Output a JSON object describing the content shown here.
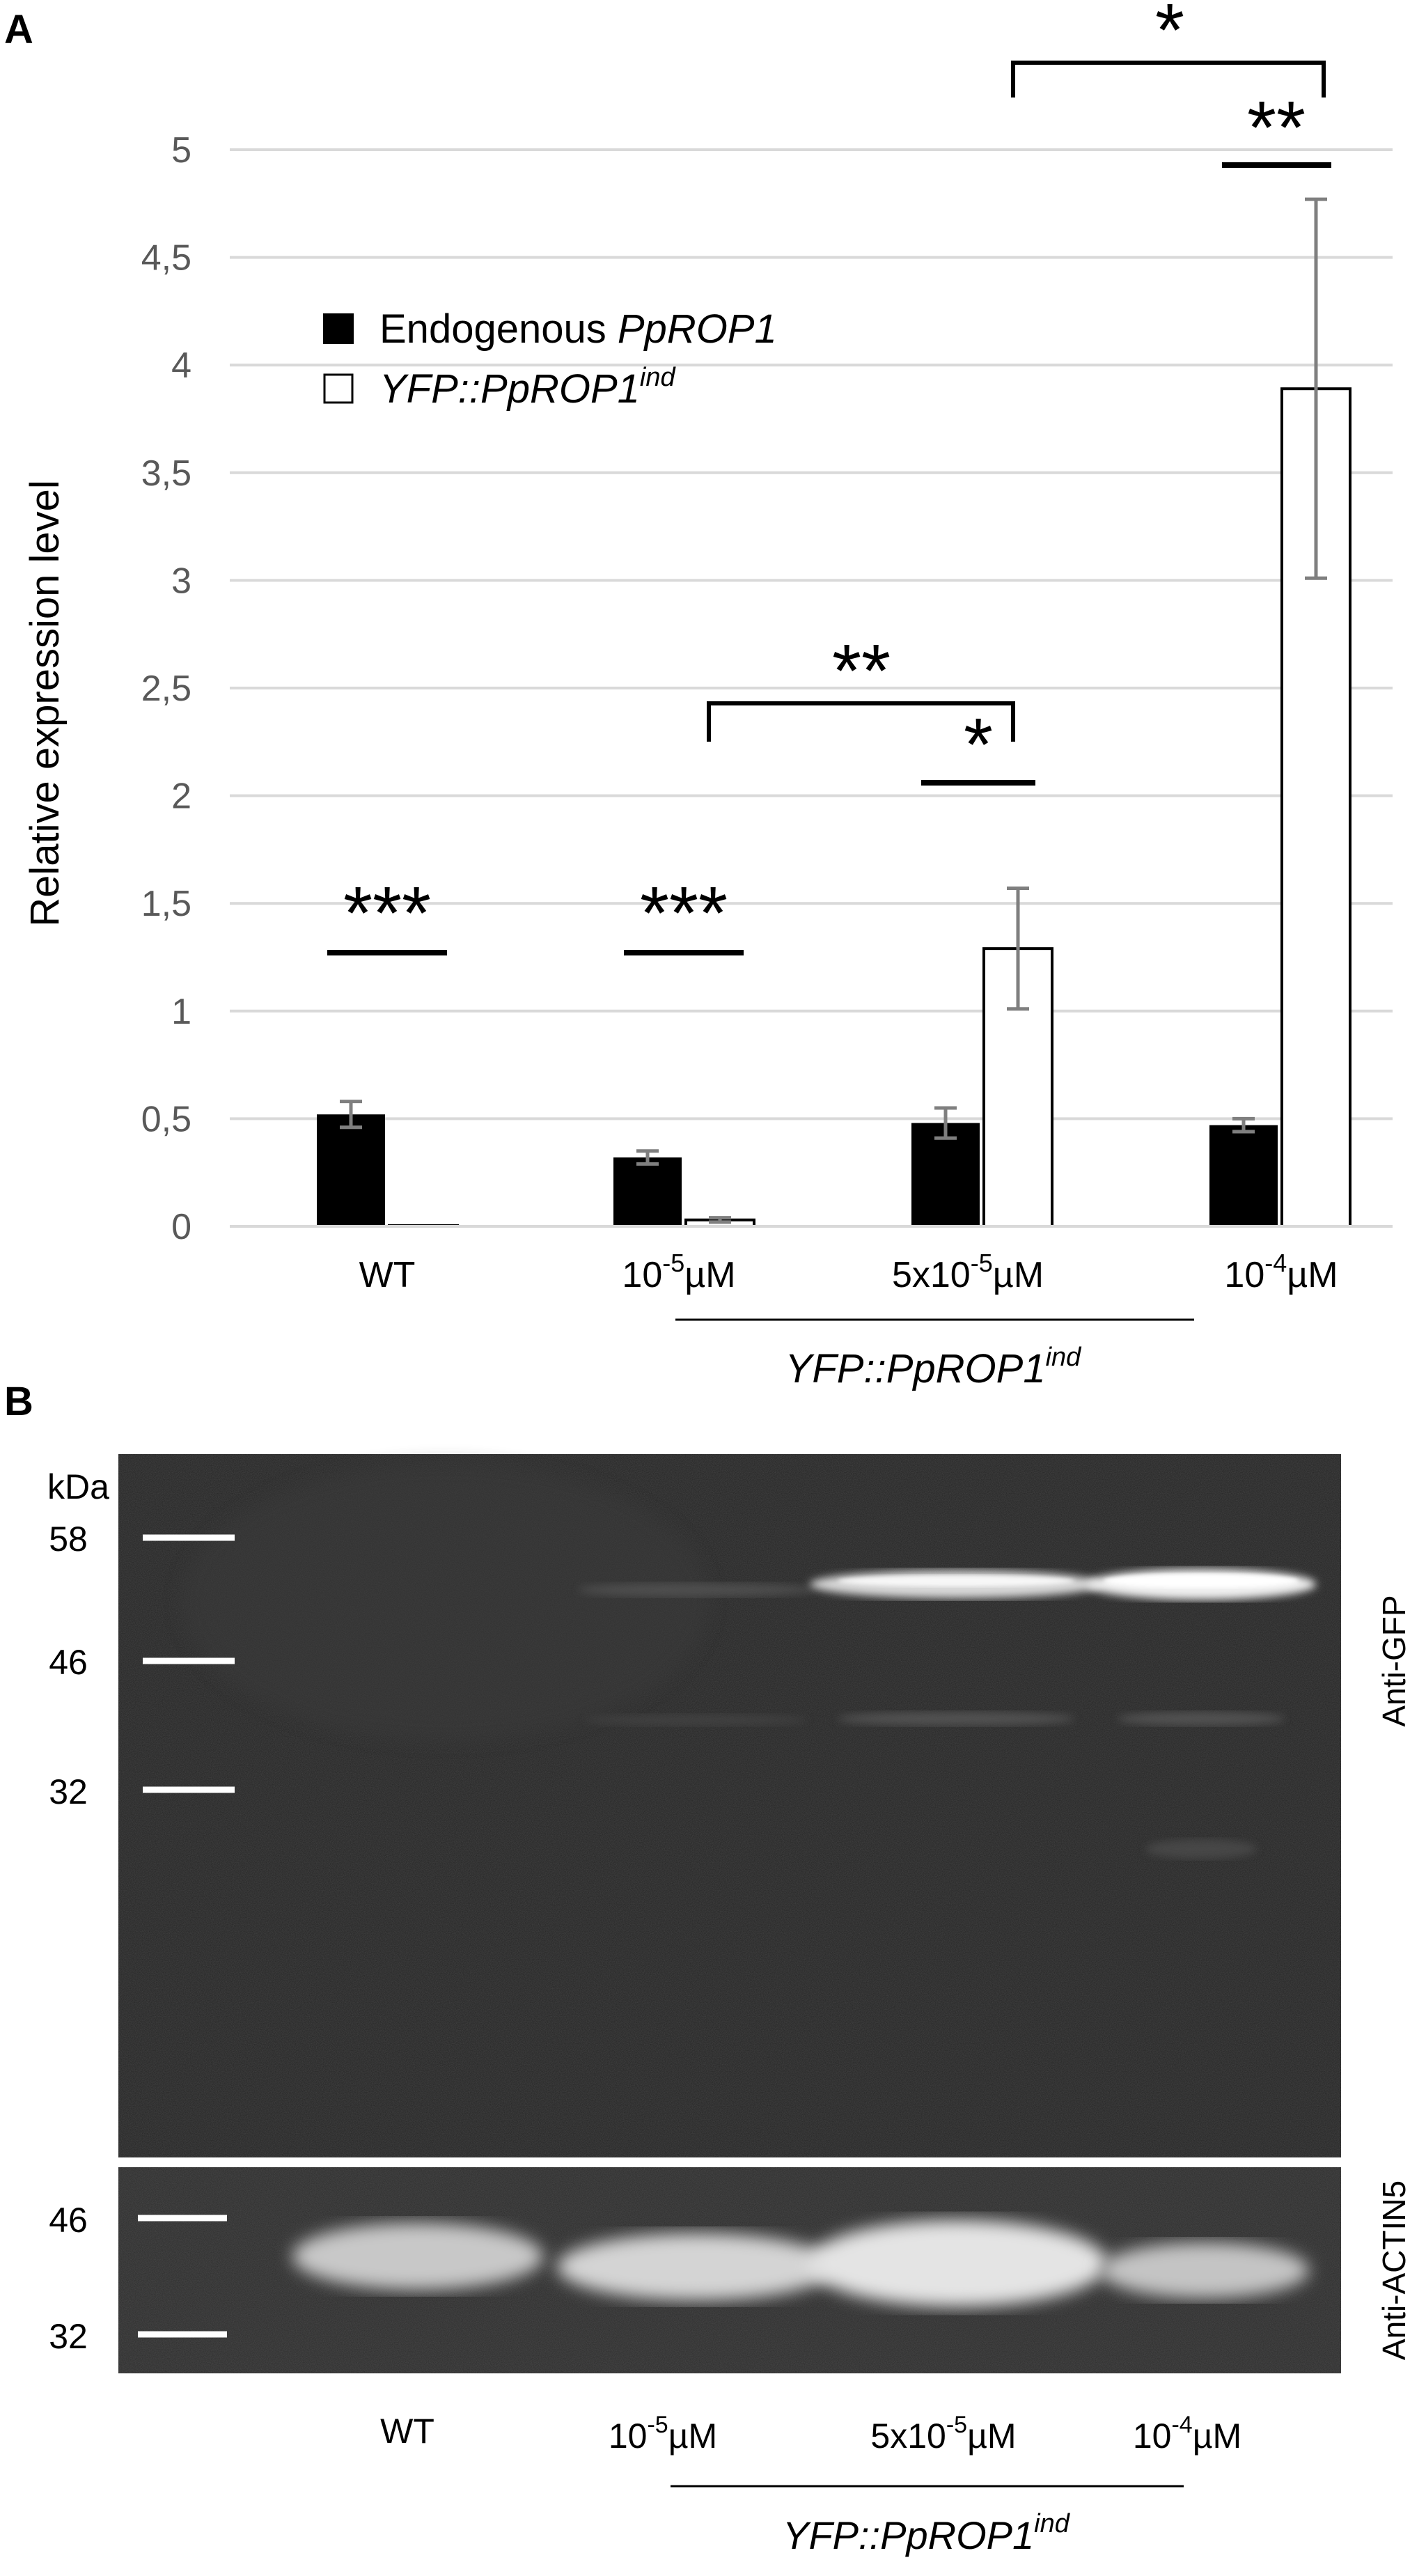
{
  "panel_a": {
    "letter": "A",
    "chart_data": {
      "type": "bar",
      "ylabel": "Relative expression level",
      "ylim": [
        0,
        5
      ],
      "yticks": [
        "0",
        "0,5",
        "1",
        "1,5",
        "2",
        "2,5",
        "3",
        "3,5",
        "4",
        "4,5",
        "5"
      ],
      "categories": [
        "WT",
        "10-5µM",
        "5x10-5µM",
        "10-4µM"
      ],
      "category_labels": [
        {
          "base": "WT",
          "exp": "",
          "unit": ""
        },
        {
          "base": "10",
          "exp": "-5",
          "unit": "µM"
        },
        {
          "base": "5x10",
          "exp": "-5",
          "unit": "µM"
        },
        {
          "base": "10",
          "exp": "-4",
          "unit": "µM"
        }
      ],
      "series": [
        {
          "name": "Endogenous PpROP1",
          "values": [
            0.52,
            0.32,
            0.48,
            0.47
          ],
          "errors": [
            0.06,
            0.03,
            0.07,
            0.03
          ],
          "color": "#000000"
        },
        {
          "name": "YFP::PpROP1ind",
          "values": [
            0.0,
            0.03,
            1.29,
            3.89
          ],
          "errors": [
            0.0,
            0.01,
            0.28,
            0.88
          ],
          "color": "#ffffff"
        }
      ],
      "grid": true,
      "legend_position": "top-left",
      "group_label": {
        "base": "YFP::PpROP1",
        "sup": "ind"
      },
      "significance": [
        "***",
        "***",
        "*",
        "**",
        "**",
        "*"
      ]
    },
    "legend": [
      {
        "plain": "Endogenous ",
        "italic": "PpROP1",
        "sup": ""
      },
      {
        "plain": "",
        "italic": "YFP::PpROP1",
        "sup": "ind"
      }
    ]
  },
  "panel_b": {
    "letter": "B",
    "kda_label": "kDa",
    "gfp_markers": [
      "58",
      "46",
      "32"
    ],
    "actin_markers": [
      "46",
      "32"
    ],
    "gfp_blot_label": "Anti-GFP",
    "actin_blot_label": "Anti-ACTIN5",
    "lanes": [
      {
        "base": "WT",
        "exp": "",
        "unit": ""
      },
      {
        "base": "10",
        "exp": "-5",
        "unit": "µM"
      },
      {
        "base": "5x10",
        "exp": "-5",
        "unit": "µM"
      },
      {
        "base": "10",
        "exp": "-4",
        "unit": "µM"
      }
    ],
    "group_label": {
      "base": "YFP::PpROP1",
      "sup": "ind"
    }
  }
}
